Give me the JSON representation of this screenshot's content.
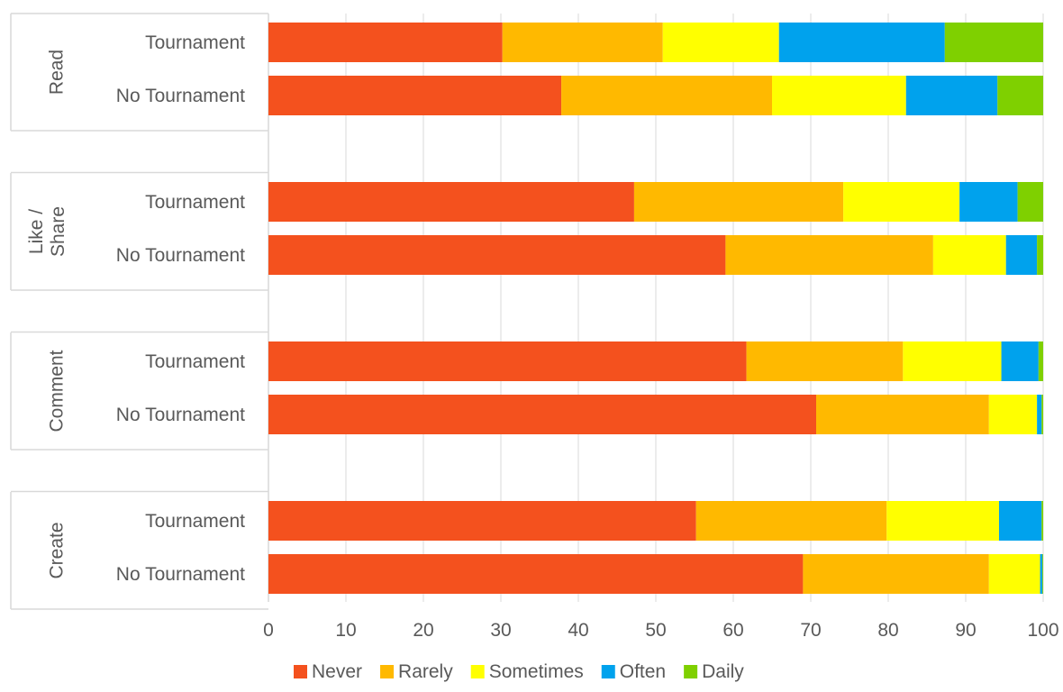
{
  "chart_data": {
    "type": "bar",
    "orientation": "horizontal",
    "stacked": true,
    "title": "",
    "xlabel": "",
    "ylabel": "",
    "xlim": [
      0,
      100
    ],
    "xticks": [
      "0",
      "10",
      "20",
      "30",
      "40",
      "50",
      "60",
      "70",
      "80",
      "90",
      "100"
    ],
    "grid": "vertical",
    "legend_position": "bottom",
    "groups": [
      {
        "label": "Read",
        "categories": [
          "Tournament",
          "No Tournament"
        ]
      },
      {
        "label": "Like / Share",
        "label_lines": [
          "Like /",
          "Share"
        ],
        "categories": [
          "Tournament",
          "No Tournament"
        ]
      },
      {
        "label": "Comment",
        "categories": [
          "Tournament",
          "No Tournament"
        ]
      },
      {
        "label": "Create",
        "categories": [
          "Tournament",
          "No Tournament"
        ]
      }
    ],
    "series": [
      {
        "name": "Never",
        "color": "#F4511E",
        "values": [
          30.2,
          37.8,
          47.2,
          59.0,
          61.7,
          70.7,
          55.2,
          69.0
        ]
      },
      {
        "name": "Rarely",
        "color": "#FFB900",
        "values": [
          20.7,
          27.2,
          27.0,
          26.8,
          20.2,
          22.3,
          24.6,
          24.0
        ]
      },
      {
        "name": "Sometimes",
        "color": "#FFFF00",
        "values": [
          15.0,
          17.3,
          15.0,
          9.4,
          12.7,
          6.2,
          14.5,
          6.6
        ]
      },
      {
        "name": "Often",
        "color": "#00A2ED",
        "values": [
          21.4,
          11.8,
          7.5,
          4.0,
          4.8,
          0.6,
          5.5,
          0.3
        ]
      },
      {
        "name": "Daily",
        "color": "#7FD000",
        "values": [
          12.7,
          5.9,
          3.3,
          0.8,
          0.6,
          0.2,
          0.2,
          0.1
        ]
      }
    ]
  }
}
